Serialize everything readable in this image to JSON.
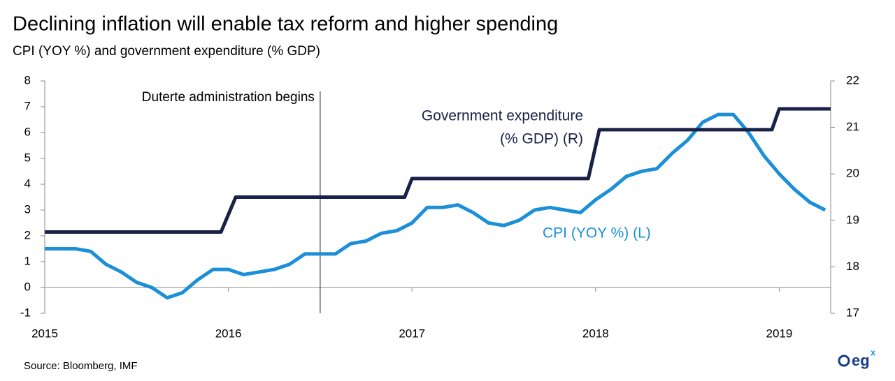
{
  "chart_data": {
    "type": "line",
    "title": "Declining inflation will enable tax reform and higher spending",
    "subtitle": "CPI (YOY %)  and government expenditure (% GDP)",
    "xlim": [
      2015,
      2019.28
    ],
    "xticks": [
      2015,
      2016,
      2017,
      2018,
      2019
    ],
    "ylim": [
      -1,
      8
    ],
    "yticks": [
      -1,
      0,
      1,
      2,
      3,
      4,
      5,
      6,
      7,
      8
    ],
    "y2lim": [
      17,
      22
    ],
    "y2ticks": [
      17,
      18,
      19,
      20,
      21,
      22
    ],
    "annotations": [
      {
        "text": "Duterte administration begins",
        "x": 2016.5
      }
    ],
    "series": [
      {
        "name": "CPI (YOY %) (L)",
        "color": "#1b8fd8",
        "axis": "y",
        "x": [
          2015,
          2015.083,
          2015.167,
          2015.25,
          2015.333,
          2015.417,
          2015.5,
          2015.583,
          2015.667,
          2015.75,
          2015.833,
          2015.917,
          2016,
          2016.083,
          2016.167,
          2016.25,
          2016.333,
          2016.417,
          2016.5,
          2016.583,
          2016.667,
          2016.75,
          2016.833,
          2016.917,
          2017,
          2017.083,
          2017.167,
          2017.25,
          2017.333,
          2017.417,
          2017.5,
          2017.583,
          2017.667,
          2017.75,
          2017.833,
          2017.917,
          2018,
          2018.083,
          2018.167,
          2018.25,
          2018.333,
          2018.417,
          2018.5,
          2018.583,
          2018.667,
          2018.75,
          2018.833,
          2018.917,
          2019,
          2019.083,
          2019.167,
          2019.25
        ],
        "values": [
          1.5,
          1.5,
          1.5,
          1.4,
          0.9,
          0.6,
          0.2,
          0.0,
          -0.4,
          -0.2,
          0.3,
          0.7,
          0.7,
          0.5,
          0.6,
          0.7,
          0.9,
          1.3,
          1.3,
          1.3,
          1.7,
          1.8,
          2.1,
          2.2,
          2.5,
          3.1,
          3.1,
          3.2,
          2.9,
          2.5,
          2.4,
          2.6,
          3.0,
          3.1,
          3.0,
          2.9,
          3.4,
          3.8,
          4.3,
          4.5,
          4.6,
          5.2,
          5.7,
          6.4,
          6.7,
          6.7,
          6.0,
          5.1,
          4.4,
          3.8,
          3.3,
          3.0
        ]
      },
      {
        "name_lines": [
          "Government expenditure",
          "(% GDP) (R)"
        ],
        "color": "#1a2147",
        "axis": "y2",
        "x": [
          2015,
          2015.96,
          2016.04,
          2016.96,
          2017.0,
          2017.96,
          2018.02,
          2018.96,
          2019.0,
          2019.28
        ],
        "values": [
          18.75,
          18.75,
          19.5,
          19.5,
          19.9,
          19.9,
          20.95,
          20.95,
          21.4,
          21.4
        ]
      }
    ],
    "source": "Source: Bloomberg, IMF"
  },
  "logo": {
    "text": "eg",
    "sup": "x"
  }
}
